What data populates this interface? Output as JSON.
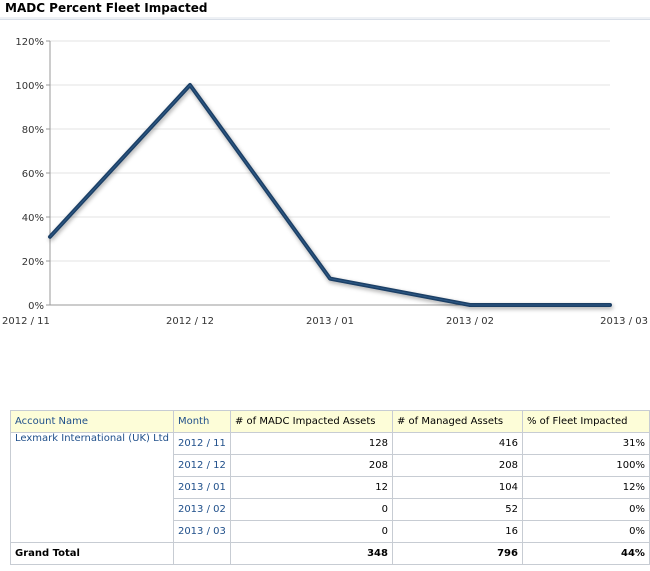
{
  "title": "MADC Percent Fleet Impacted",
  "chart_data": {
    "type": "line",
    "categories": [
      "2012 / 11",
      "2012 / 12",
      "2013 / 01",
      "2013 / 02",
      "2013 / 03"
    ],
    "values": [
      31,
      100,
      12,
      0,
      0
    ],
    "ylim": [
      0,
      120
    ],
    "yticks": [
      "0%",
      "20%",
      "40%",
      "60%",
      "80%",
      "100%",
      "120%"
    ],
    "xlabel": "",
    "ylabel": "",
    "grid": true,
    "line_color": "#1d3f66"
  },
  "table": {
    "headers": [
      "Account Name",
      "Month",
      "# of MADC Impacted Assets",
      "# of Managed Assets",
      "% of Fleet Impacted"
    ],
    "account": "Lexmark International (UK) Ltd",
    "rows": [
      {
        "month": "2012 / 11",
        "impacted": "128",
        "managed": "416",
        "pct": "31%"
      },
      {
        "month": "2012 / 12",
        "impacted": "208",
        "managed": "208",
        "pct": "100%"
      },
      {
        "month": "2013 / 01",
        "impacted": "12",
        "managed": "104",
        "pct": "12%"
      },
      {
        "month": "2013 / 02",
        "impacted": "0",
        "managed": "52",
        "pct": "0%"
      },
      {
        "month": "2013 / 03",
        "impacted": "0",
        "managed": "16",
        "pct": "0%"
      }
    ],
    "total": {
      "label": "Grand Total",
      "impacted": "348",
      "managed": "796",
      "pct": "44%"
    }
  }
}
